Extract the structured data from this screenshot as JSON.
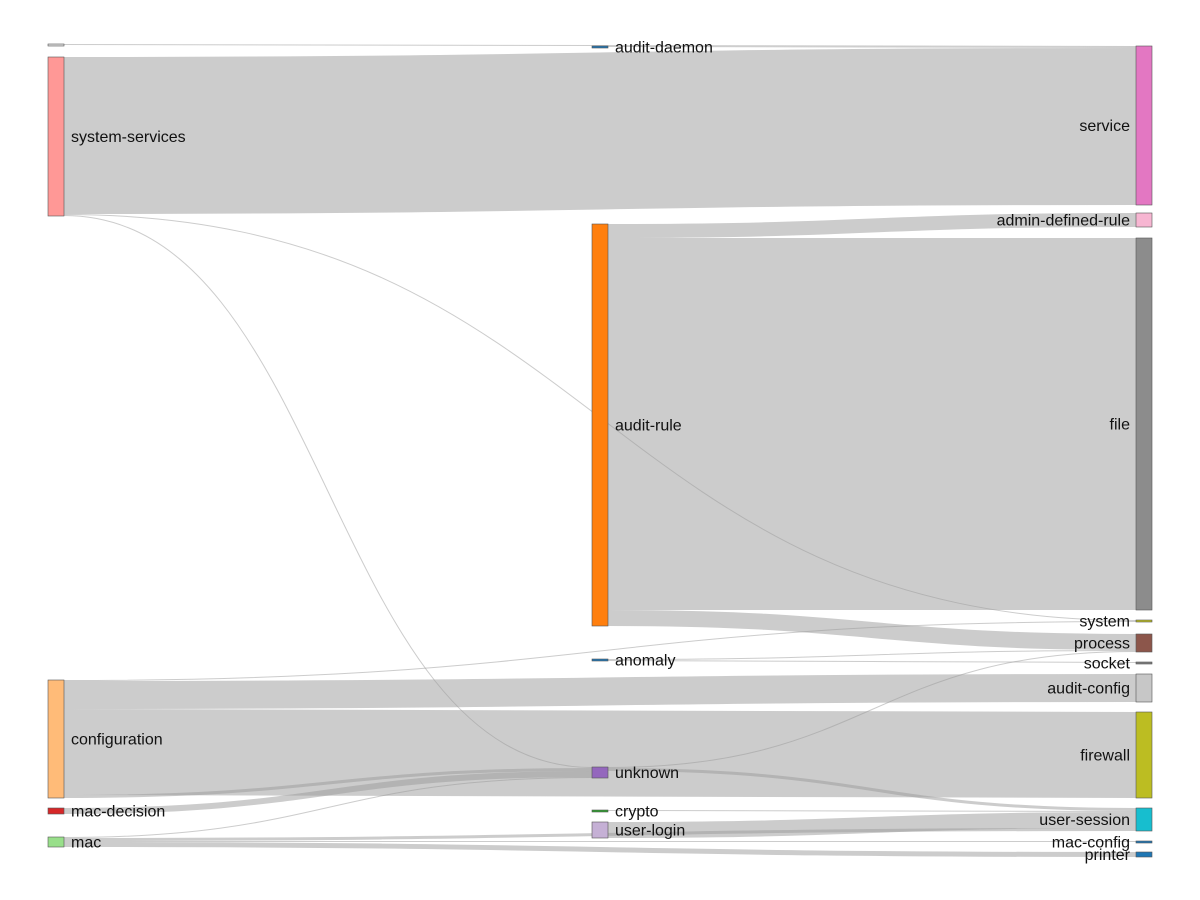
{
  "chart_data": {
    "type": "sankey",
    "title": "",
    "columns": [
      [
        "(unlabeled)",
        "system-services",
        "configuration",
        "mac-decision",
        "mac"
      ],
      [
        "audit-daemon",
        "audit-rule",
        "anomaly",
        "unknown",
        "crypto",
        "user-login"
      ],
      [
        "service",
        "admin-defined-rule",
        "file",
        "system",
        "process",
        "socket",
        "audit-config",
        "firewall",
        "user-session",
        "mac-config",
        "printer"
      ]
    ],
    "nodes": [
      {
        "id": "src-unlabeled",
        "label": "",
        "column": 0,
        "color": "#e0e0e0"
      },
      {
        "id": "system-services",
        "label": "system-services",
        "column": 0,
        "color": "#ff9896"
      },
      {
        "id": "configuration",
        "label": "configuration",
        "column": 0,
        "color": "#ffbb78"
      },
      {
        "id": "mac-decision",
        "label": "mac-decision",
        "column": 0,
        "color": "#d62728"
      },
      {
        "id": "mac",
        "label": "mac",
        "column": 0,
        "color": "#98df8a"
      },
      {
        "id": "audit-daemon",
        "label": "audit-daemon",
        "column": 1,
        "color": "#1f77b4"
      },
      {
        "id": "audit-rule",
        "label": "audit-rule",
        "column": 1,
        "color": "#ff7f0e"
      },
      {
        "id": "anomaly",
        "label": "anomaly",
        "column": 1,
        "color": "#1f77b4"
      },
      {
        "id": "unknown",
        "label": "unknown",
        "column": 1,
        "color": "#9467bd"
      },
      {
        "id": "crypto",
        "label": "crypto",
        "column": 1,
        "color": "#2ca02c"
      },
      {
        "id": "user-login",
        "label": "user-login",
        "column": 1,
        "color": "#c5b0d5"
      },
      {
        "id": "service",
        "label": "service",
        "column": 2,
        "color": "#e377c2"
      },
      {
        "id": "admin-defined-rule",
        "label": "admin-defined-rule",
        "column": 2,
        "color": "#f7b6d2"
      },
      {
        "id": "file",
        "label": "file",
        "column": 2,
        "color": "#8c8c8c"
      },
      {
        "id": "system",
        "label": "system",
        "column": 2,
        "color": "#bcbd22"
      },
      {
        "id": "process",
        "label": "process",
        "column": 2,
        "color": "#8c564b"
      },
      {
        "id": "socket",
        "label": "socket",
        "column": 2,
        "color": "#7f7f7f"
      },
      {
        "id": "audit-config",
        "label": "audit-config",
        "column": 2,
        "color": "#c7c7c7"
      },
      {
        "id": "firewall",
        "label": "firewall",
        "column": 2,
        "color": "#bcbd22"
      },
      {
        "id": "user-session",
        "label": "user-session",
        "column": 2,
        "color": "#17becf"
      },
      {
        "id": "mac-config",
        "label": "mac-config",
        "column": 2,
        "color": "#1f77b4"
      },
      {
        "id": "printer",
        "label": "printer",
        "column": 2,
        "color": "#1f77b4"
      }
    ],
    "links": [
      {
        "source": "system-services",
        "target": "service",
        "value": 157
      },
      {
        "source": "src-unlabeled",
        "target": "service",
        "value": 1
      },
      {
        "source": "system-services",
        "target": "system",
        "value": 1
      },
      {
        "source": "system-services",
        "target": "unknown",
        "value": 1
      },
      {
        "source": "audit-daemon",
        "target": "service",
        "value": 1
      },
      {
        "source": "audit-rule",
        "target": "admin-defined-rule",
        "value": 14
      },
      {
        "source": "audit-rule",
        "target": "file",
        "value": 372
      },
      {
        "source": "audit-rule",
        "target": "process",
        "value": 16
      },
      {
        "source": "configuration",
        "target": "system",
        "value": 1
      },
      {
        "source": "configuration",
        "target": "audit-config",
        "value": 28
      },
      {
        "source": "configuration",
        "target": "firewall",
        "value": 86
      },
      {
        "source": "configuration",
        "target": "unknown",
        "value": 3
      },
      {
        "source": "anomaly",
        "target": "process",
        "value": 1
      },
      {
        "source": "anomaly",
        "target": "socket",
        "value": 1
      },
      {
        "source": "mac-decision",
        "target": "unknown",
        "value": 6
      },
      {
        "source": "mac",
        "target": "unknown",
        "value": 1
      },
      {
        "source": "mac",
        "target": "user-session",
        "value": 3
      },
      {
        "source": "mac",
        "target": "mac-config",
        "value": 1
      },
      {
        "source": "mac",
        "target": "printer",
        "value": 5
      },
      {
        "source": "unknown",
        "target": "process",
        "value": 1
      },
      {
        "source": "unknown",
        "target": "user-session",
        "value": 3
      },
      {
        "source": "crypto",
        "target": "user-session",
        "value": 1
      },
      {
        "source": "user-login",
        "target": "user-session",
        "value": 16
      }
    ]
  }
}
